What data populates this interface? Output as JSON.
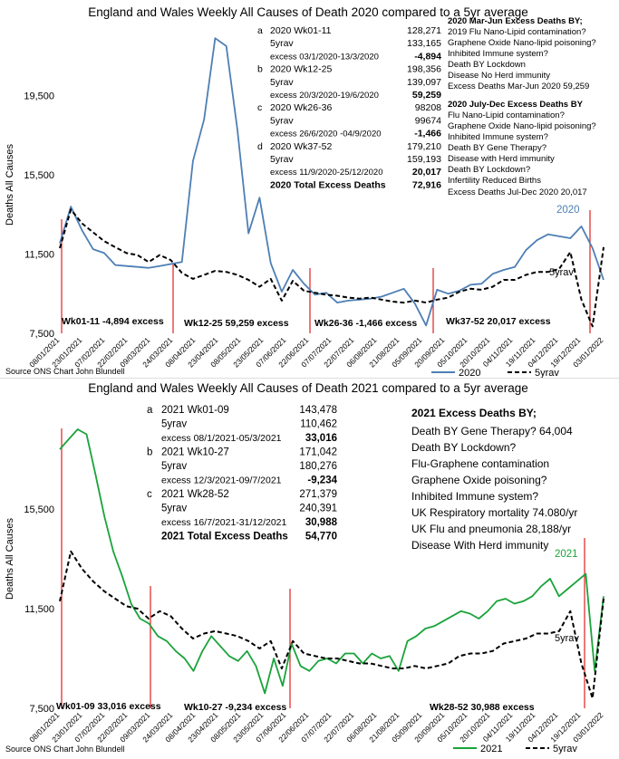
{
  "chart_data": [
    {
      "type": "line",
      "title": "England and Wales Weekly All Causes of Death 2020 compared to a 5yr average",
      "ylabel": "Deaths All Causes",
      "ylim": [
        7500,
        22500
      ],
      "yticks": [
        "7,500",
        "11,500",
        "15,500",
        "19,500"
      ],
      "ytick_values": [
        7500,
        11500,
        15500,
        19500
      ],
      "x_ticks": [
        "08/01/2021",
        "23/01/2021",
        "07/02/2021",
        "22/02/2021",
        "09/03/2021",
        "24/03/2021",
        "08/04/2021",
        "23/04/2021",
        "08/05/2021",
        "23/05/2021",
        "07/06/2021",
        "22/06/2021",
        "07/07/2021",
        "22/07/2021",
        "06/08/2021",
        "21/08/2021",
        "05/09/2021",
        "20/09/2021",
        "05/10/2021",
        "20/10/2021",
        "04/11/2021",
        "19/11/2021",
        "04/12/2021",
        "19/12/2021",
        "03/01/2022"
      ],
      "series": [
        {
          "name": "2020",
          "color": "#4e7fb5",
          "style": "solid",
          "values": [
            12050,
            13900,
            12700,
            11750,
            11550,
            10950,
            10900,
            10850,
            10800,
            10900,
            11000,
            11100,
            16200,
            18300,
            22400,
            22000,
            17800,
            12550,
            14350,
            11050,
            9600,
            10700,
            10000,
            9450,
            9550,
            9050,
            9150,
            9200,
            9250,
            9350,
            9550,
            9750,
            9000,
            7900,
            9700,
            9500,
            9650,
            9950,
            10000,
            10500,
            10700,
            10850,
            11700,
            12200,
            12500,
            12400,
            12300,
            12900,
            11800,
            10200
          ]
        },
        {
          "name": "5yrav",
          "color": "#000000",
          "style": "dashed",
          "values": [
            11800,
            13750,
            13050,
            12600,
            12150,
            11850,
            11550,
            11450,
            11100,
            11450,
            11200,
            10550,
            10250,
            10450,
            10650,
            10600,
            10450,
            10200,
            9850,
            10250,
            9150,
            10150,
            9650,
            9550,
            9450,
            9400,
            9300,
            9250,
            9300,
            9200,
            9100,
            9050,
            9150,
            9050,
            9200,
            9300,
            9600,
            9750,
            9700,
            9850,
            10200,
            10200,
            10450,
            10600,
            10600,
            10750,
            11600,
            9200,
            7850,
            11850
          ]
        }
      ],
      "annotations": {
        "table": [
          {
            "key": "a",
            "label": "2020 Wk01-11",
            "value": "128,271",
            "bold": false
          },
          {
            "key": "",
            "label": "5yrav",
            "value": "133,165",
            "bold": false
          },
          {
            "key": "",
            "label": "excess 03/1/2020-13/3/2020",
            "value": "-4,894",
            "bold": true
          },
          {
            "key": "b",
            "label": "2020 Wk12-25",
            "value": "198,356",
            "bold": false
          },
          {
            "key": "",
            "label": "5yrav",
            "value": "139,097",
            "bold": false
          },
          {
            "key": "",
            "label": "excess 20/3/2020-19/6/2020",
            "value": "59,259",
            "bold": true
          },
          {
            "key": "c",
            "label": "2020  Wk26-36",
            "value": "98208",
            "bold": false
          },
          {
            "key": "",
            "label": "5yrav",
            "value": "99674",
            "bold": false
          },
          {
            "key": "",
            "label": "excess 26/6/2020 -04/9/2020",
            "value": "-1,466",
            "bold": true
          },
          {
            "key": "d",
            "label": "2020 Wk37-52",
            "value": "179,210",
            "bold": false
          },
          {
            "key": "",
            "label": "5yrav",
            "value": "159,193",
            "bold": false
          },
          {
            "key": "",
            "label": "excess 11/9/2020-25/12/2020",
            "value": "20,017",
            "bold": true
          },
          {
            "key": "",
            "label": "2020 Total Excess Deaths",
            "value": "72,916",
            "bold": true,
            "label_bold": true
          }
        ],
        "notes": [
          {
            "text": "2020 Mar-Jun Excess Deaths BY;",
            "bold": true
          },
          {
            "text": "2019 Flu Nano-Lipid contamination?",
            "bold": false
          },
          {
            "text": "Graphene Oxide Nano-lipid poisoning?",
            "bold": false
          },
          {
            "text": "Inhibited Immune system?",
            "bold": false
          },
          {
            "text": "Death BY Lockdown",
            "bold": false
          },
          {
            "text": "Disease No Herd immunity",
            "bold": false
          },
          {
            "text": "Excess Deaths Mar-Jun 2020 59,259",
            "bold": false
          },
          {
            "text": "2020 July-Dec Excess Deaths BY",
            "bold": true
          },
          {
            "text": "Flu Nano-Lipid contamination?",
            "bold": false
          },
          {
            "text": "Graphene Oxide Nano-lipid poisoning?",
            "bold": false
          },
          {
            "text": "Inhibited Immune system?",
            "bold": false
          },
          {
            "text": "Death BY Gene Therapy?",
            "bold": false
          },
          {
            "text": "Disease with Herd immunity",
            "bold": false
          },
          {
            "text": "Death BY Lockdown?",
            "bold": false
          },
          {
            "text": "Infertility Reduced Births",
            "bold": false
          },
          {
            "text": "Excess Deaths Jul-Dec 2020 20,017",
            "bold": false
          }
        ],
        "period_labels": [
          "Wk01-11  -4,894 excess",
          "Wk12-25  59,259 excess",
          "Wk26-36  -1,466 excess",
          "Wk37-52  20,017 excess"
        ],
        "series_label": "2020",
        "avg_label": "5yrav"
      },
      "legend": {
        "placement": "bottom",
        "items": [
          "2020",
          "5yrav"
        ]
      },
      "source": "Source ONS Chart John Blundell"
    },
    {
      "type": "line",
      "title": "England and Wales Weekly All Causes of Death 2021 compared to a 5yr average",
      "ylabel": "Deaths All Causes",
      "ylim": [
        7500,
        19500
      ],
      "yticks": [
        "7,500",
        "11,500",
        "15,500"
      ],
      "ytick_values": [
        7500,
        11500,
        15500
      ],
      "x_ticks": [
        "08/01/2021",
        "23/01/2021",
        "07/02/2021",
        "22/02/2021",
        "09/03/2021",
        "24/03/2021",
        "08/04/2021",
        "23/04/2021",
        "08/05/2021",
        "23/05/2021",
        "07/06/2021",
        "22/06/2021",
        "07/07/2021",
        "22/07/2021",
        "06/08/2021",
        "21/08/2021",
        "05/09/2021",
        "20/09/2021",
        "05/10/2021",
        "20/10/2021",
        "04/11/2021",
        "19/11/2021",
        "04/12/2021",
        "19/12/2021",
        "03/01/2022"
      ],
      "series": [
        {
          "name": "2021",
          "color": "#1aa33a",
          "style": "solid",
          "values": [
            17900,
            18300,
            18700,
            18500,
            16900,
            15200,
            13800,
            12800,
            11700,
            11100,
            10900,
            10400,
            10200,
            9800,
            9500,
            9000,
            9800,
            10400,
            10000,
            9600,
            9400,
            9800,
            9200,
            8100,
            9500,
            8400,
            10100,
            9200,
            9000,
            9400,
            9500,
            9300,
            9700,
            9700,
            9300,
            9700,
            9500,
            9600,
            9000,
            10200,
            10400,
            10700,
            10800,
            11000,
            11200,
            11400,
            11300,
            11100,
            11400,
            11800,
            11900,
            11700,
            11800,
            12000,
            12400,
            12700,
            12000,
            12300,
            12600,
            12900,
            9000,
            12000
          ]
        },
        {
          "name": "5yrav",
          "color": "#000000",
          "style": "dashed",
          "values": [
            11800,
            13800,
            13100,
            12600,
            12200,
            11900,
            11600,
            11500,
            11100,
            11400,
            11200,
            10700,
            10300,
            10500,
            10600,
            10500,
            10400,
            10200,
            9900,
            10200,
            9100,
            10200,
            9700,
            9600,
            9500,
            9500,
            9400,
            9300,
            9300,
            9200,
            9100,
            9100,
            9200,
            9100,
            9200,
            9300,
            9600,
            9700,
            9700,
            9800,
            10100,
            10200,
            10300,
            10500,
            10500,
            10600,
            11400,
            9300,
            7900,
            11900
          ]
        }
      ],
      "annotations": {
        "table": [
          {
            "key": "a",
            "label": "2021 Wk01-09",
            "value": "143,478",
            "bold": false
          },
          {
            "key": "",
            "label": "5yrav",
            "value": "110,462",
            "bold": false
          },
          {
            "key": "",
            "label": "excess 08/1/2021-05/3/2021",
            "value": "33,016",
            "bold": true
          },
          {
            "key": "b",
            "label": "2021 Wk10-27",
            "value": "171,042",
            "bold": false
          },
          {
            "key": "",
            "label": "5yrav",
            "value": "180,276",
            "bold": false
          },
          {
            "key": "",
            "label": "excess 12/3/2021-09/7/2021",
            "value": "-9,234",
            "bold": true
          },
          {
            "key": "c",
            "label": "2021 Wk28-52",
            "value": "271,379",
            "bold": false
          },
          {
            "key": "",
            "label": "5yrav",
            "value": "240,391",
            "bold": false
          },
          {
            "key": "",
            "label": "excess 16/7/2021-31/12/2021",
            "value": "30,988",
            "bold": true
          },
          {
            "key": "",
            "label": "2021 Total Excess Deaths",
            "value": "54,770",
            "bold": true,
            "label_bold": true
          }
        ],
        "notes": [
          {
            "text": "2021 Excess Deaths BY;",
            "bold": true
          },
          {
            "text": "Death BY Gene Therapy? 64,004",
            "bold": false
          },
          {
            "text": "Death BY Lockdown?",
            "bold": false
          },
          {
            "text": "Flu-Graphene contamination",
            "bold": false
          },
          {
            "text": "Graphene Oxide poisoning?",
            "bold": false
          },
          {
            "text": "Inhibited Immune system?",
            "bold": false
          },
          {
            "text": "UK Respiratory mortality 74.080/yr",
            "bold": false
          },
          {
            "text": "UK Flu and pneumonia  28,188/yr",
            "bold": false
          },
          {
            "text": "Disease With Herd immunity",
            "bold": false
          }
        ],
        "period_labels": [
          "Wk01-09  33,016 excess",
          "Wk10-27  -9,234 excess",
          "Wk28-52  30,988 excess"
        ],
        "series_label": "2021",
        "avg_label": "5yrav"
      },
      "legend": {
        "placement": "bottom",
        "items": [
          "2021",
          "5yrav"
        ]
      },
      "source": "Source ONS Chart John Blundell"
    }
  ]
}
